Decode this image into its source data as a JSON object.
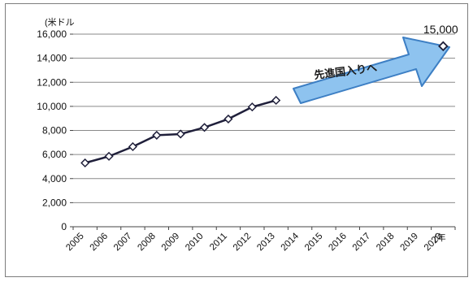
{
  "chart_data": {
    "type": "line",
    "y_unit": "(米ドル",
    "x_unit": "(年",
    "ylim": [
      0,
      16000
    ],
    "y_ticks": [
      "0",
      "2,000",
      "4,000",
      "6,000",
      "8,000",
      "10,000",
      "12,000",
      "14,000",
      "16,000"
    ],
    "x_tick_labels": [
      "2005",
      "2006",
      "2007",
      "2008",
      "2009",
      "2010",
      "2011",
      "2012",
      "2013",
      "2014",
      "2015",
      "2016",
      "2017",
      "2018",
      "2019",
      "2020"
    ],
    "grid": "horizontal",
    "legend": "none",
    "series": [
      {
        "x": [
          2005,
          2006,
          2007,
          2008,
          2009,
          2010,
          2011,
          2012,
          2013
        ],
        "values": [
          5300,
          5850,
          6650,
          7600,
          7700,
          8250,
          8950,
          9950,
          10500
        ],
        "color": "#1f1f3a",
        "marker": "diamond"
      }
    ],
    "target_point": {
      "x": 2020,
      "value": 15000,
      "label": "15,000",
      "marker": "diamond"
    },
    "annotation": {
      "text": "先進国入りへ",
      "shape": "arrow",
      "color": "#8ec3ef",
      "border": "#3d7fc4"
    }
  }
}
